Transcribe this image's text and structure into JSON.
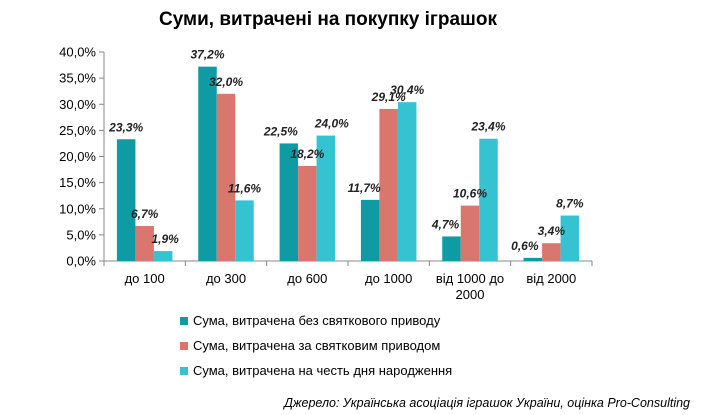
{
  "chart_data": {
    "type": "bar",
    "title": "Суми, витрачені на покупку іграшок",
    "categories": [
      [
        "до 100"
      ],
      [
        "до 300"
      ],
      [
        "до 600"
      ],
      [
        "до 1000"
      ],
      [
        "від 1000 до",
        "2000"
      ],
      [
        "від 2000"
      ]
    ],
    "series": [
      {
        "name": "Сума, витрачена без святкового приводу",
        "color": "#0e9ba4",
        "values": [
          23.3,
          37.2,
          22.5,
          11.7,
          4.7,
          0.6
        ],
        "labels": [
          "23,3%",
          "37,2%",
          "22,5%",
          "11,7%",
          "4,7%",
          "0,6%"
        ]
      },
      {
        "name": "Сума, витрачена за святковим приводом",
        "color": "#d9776f",
        "values": [
          6.7,
          32.0,
          18.2,
          29.1,
          10.6,
          3.4
        ],
        "labels": [
          "6,7%",
          "32,0%",
          "18,2%",
          "29,1%",
          "10,6%",
          "3,4%"
        ]
      },
      {
        "name": "Сума, витрачена на честь дня народження",
        "color": "#35c3d1",
        "values": [
          1.9,
          11.6,
          24.0,
          30.4,
          23.4,
          8.7
        ],
        "labels": [
          "1,9%",
          "11,6%",
          "24,0%",
          "30,4%",
          "23,4%",
          "8,7%"
        ]
      }
    ],
    "ylim": [
      0,
      40
    ],
    "yticks": [
      0,
      5,
      10,
      15,
      20,
      25,
      30,
      35,
      40
    ],
    "ytick_labels": [
      "0,0%",
      "5,0%",
      "10,0%",
      "15,0%",
      "20,0%",
      "25,0%",
      "30,0%",
      "35,0%",
      "40,0%"
    ],
    "grid": false,
    "legend_position": "bottom",
    "source": "Джерело: Українська асоціація іграшок України, оцінка Pro-Consulting"
  }
}
